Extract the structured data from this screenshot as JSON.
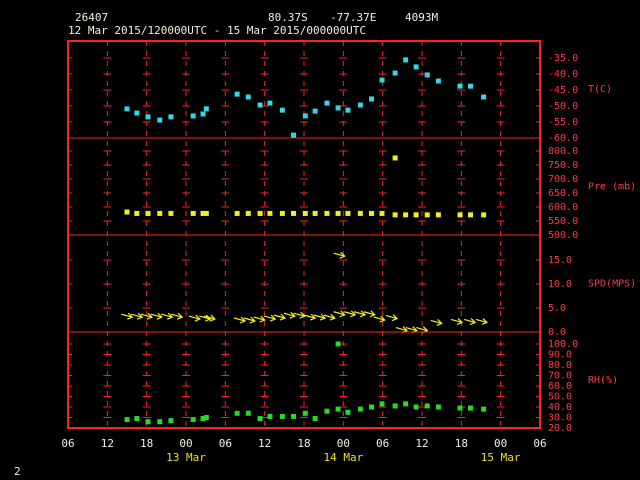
{
  "header": {
    "station": "26407",
    "lat": "80.37S",
    "lon": "-77.37E",
    "elev": "4093M",
    "period": "12 Mar 2015/120000UTC - 15 Mar 2015/000000UTC"
  },
  "footer": "2",
  "chart_data": [
    {
      "type": "scatter",
      "ylabel": "T(C)",
      "color": "#30d8e8",
      "xlim": [
        6,
        78
      ],
      "ylim": [
        -60,
        -29.7
      ],
      "yticks": [
        {
          "value": -35,
          "label": "-35.0"
        },
        {
          "value": -40,
          "label": "-40.0"
        },
        {
          "value": -45,
          "label": "-45.0"
        },
        {
          "value": -50,
          "label": "-50.0"
        },
        {
          "value": -55,
          "label": "-55.0"
        },
        {
          "value": -60,
          "label": "-60.0"
        }
      ],
      "x": [
        15.0,
        16.5,
        18.2,
        20.0,
        21.7,
        25.1,
        26.6,
        27.1,
        31.8,
        33.5,
        35.3,
        36.8,
        38.7,
        40.4,
        42.2,
        43.7,
        45.5,
        47.2,
        48.7,
        50.6,
        52.3,
        53.9,
        55.9,
        57.5,
        59.1,
        60.8,
        62.5,
        65.8,
        67.4,
        69.4
      ],
      "values": [
        -50.9,
        -52.2,
        -53.4,
        -54.4,
        -53.4,
        -53.1,
        -52.5,
        -50.9,
        -46.3,
        -47.2,
        -49.7,
        -49.1,
        -51.3,
        -59.1,
        -53.1,
        -51.6,
        -49.1,
        -50.6,
        -51.3,
        -49.7,
        -47.8,
        -41.9,
        -39.7,
        -35.6,
        -37.8,
        -40.3,
        -42.2,
        -43.8,
        -43.8,
        -47.2
      ]
    },
    {
      "type": "scatter",
      "ylabel": "Pre (mb)",
      "color": "#f0f020",
      "xlim": [
        6,
        78
      ],
      "ylim": [
        500,
        846.4
      ],
      "yticks": [
        {
          "value": 500,
          "label": "500.0"
        },
        {
          "value": 550,
          "label": "550.0"
        },
        {
          "value": 600,
          "label": "600.0"
        },
        {
          "value": 650,
          "label": "650.0"
        },
        {
          "value": 700,
          "label": "700.0"
        },
        {
          "value": 750,
          "label": "750.0"
        },
        {
          "value": 800,
          "label": "800.0"
        }
      ],
      "x": [
        15.0,
        16.5,
        18.2,
        20.0,
        21.7,
        25.1,
        26.6,
        27.1,
        31.8,
        33.5,
        35.3,
        36.8,
        38.7,
        40.4,
        42.2,
        43.7,
        45.5,
        47.2,
        48.7,
        50.6,
        52.3,
        53.9,
        55.9,
        55.9,
        57.5,
        59.1,
        60.8,
        62.5,
        65.8,
        67.4,
        69.4
      ],
      "values": [
        582,
        577,
        577,
        577,
        577,
        577,
        577,
        577,
        577,
        577,
        577,
        577,
        577,
        577,
        577,
        577,
        577,
        577,
        577,
        577,
        577,
        577,
        775,
        572,
        572,
        572,
        572,
        572,
        572,
        572,
        572
      ]
    },
    {
      "type": "wind",
      "ylabel": "SPD(MPS)",
      "color": "#f0f020",
      "xlim": [
        6,
        78
      ],
      "ylim": [
        0,
        20.2
      ],
      "yticks": [
        {
          "value": 0,
          "label": "0.0"
        },
        {
          "value": 5,
          "label": "5.0"
        },
        {
          "value": 10,
          "label": "10.0"
        },
        {
          "value": 15,
          "label": "15.0"
        }
      ],
      "x": [
        15.5,
        17.0,
        18.5,
        20.0,
        21.6,
        23.1,
        25.8,
        27.4,
        28.1,
        32.7,
        34.2,
        35.7,
        37.3,
        38.8,
        40.3,
        41.8,
        43.4,
        44.9,
        46.4,
        47.9,
        47.9,
        49.5,
        51.0,
        52.5,
        54.0,
        55.9,
        57.4,
        58.9,
        60.5,
        62.7,
        65.8,
        67.8,
        69.6
      ],
      "values": [
        3.3,
        3.3,
        3.3,
        3.3,
        3.3,
        3.3,
        2.9,
        2.9,
        2.9,
        2.5,
        2.5,
        2.7,
        2.9,
        3.1,
        3.5,
        3.5,
        3.1,
        3.1,
        3.1,
        16,
        3.8,
        3.8,
        3.8,
        3.8,
        2.7,
        3.0,
        0.5,
        0.5,
        0.5,
        2.0,
        2.2,
        2.2,
        2.2
      ]
    },
    {
      "type": "scatter",
      "ylabel": "RH(%)",
      "color": "#22dd22",
      "xlim": [
        6,
        78
      ],
      "ylim": [
        20,
        111.4
      ],
      "yticks": [
        {
          "value": 20,
          "label": "20.0"
        },
        {
          "value": 30,
          "label": "30.0"
        },
        {
          "value": 40,
          "label": "40.0"
        },
        {
          "value": 50,
          "label": "50.0"
        },
        {
          "value": 60,
          "label": "60.0"
        },
        {
          "value": 70,
          "label": "70.0"
        },
        {
          "value": 80,
          "label": "80.0"
        },
        {
          "value": 90,
          "label": "90.0"
        },
        {
          "value": 100,
          "label": "100.0"
        }
      ],
      "x": [
        15.0,
        16.5,
        18.2,
        20.0,
        21.7,
        25.1,
        26.6,
        27.1,
        31.8,
        33.5,
        35.3,
        36.8,
        38.7,
        40.4,
        42.2,
        43.7,
        45.5,
        47.2,
        47.2,
        48.7,
        50.6,
        52.3,
        53.9,
        55.9,
        57.5,
        59.1,
        60.8,
        62.5,
        65.8,
        67.4,
        69.4
      ],
      "values": [
        28,
        29,
        26,
        26,
        27,
        28,
        29,
        30,
        34,
        34,
        29,
        31,
        31,
        31,
        34,
        29,
        36,
        38,
        100,
        35,
        38,
        40,
        43,
        41,
        43,
        40,
        41,
        40,
        39,
        39,
        38
      ],
      "xticks": [
        {
          "value": 6,
          "label": "06"
        },
        {
          "value": 12,
          "label": "12"
        },
        {
          "value": 18,
          "label": "18"
        },
        {
          "value": 24,
          "label": "00"
        },
        {
          "value": 30,
          "label": "06"
        },
        {
          "value": 36,
          "label": "12"
        },
        {
          "value": 42,
          "label": "18"
        },
        {
          "value": 48,
          "label": "00"
        },
        {
          "value": 54,
          "label": "06"
        },
        {
          "value": 60,
          "label": "12"
        },
        {
          "value": 66,
          "label": "18"
        },
        {
          "value": 72,
          "label": "00"
        },
        {
          "value": 78,
          "label": "06"
        }
      ],
      "days": [
        {
          "value": 24,
          "label": "13 Mar"
        },
        {
          "value": 48,
          "label": "14 Mar"
        },
        {
          "value": 72,
          "label": "15 Mar"
        }
      ]
    }
  ]
}
